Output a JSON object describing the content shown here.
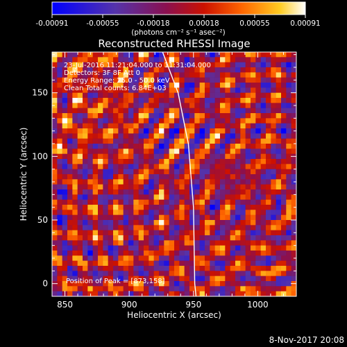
{
  "colorbar": {
    "ticks": [
      "-0.00091",
      "-0.00055",
      "-0.00018",
      "0.00018",
      "0.00055",
      "0.00091"
    ],
    "unit_label": "(photons cm⁻² s⁻¹ asec⁻²)"
  },
  "footer": {
    "timestamp": "8-Nov-2017 20:08"
  },
  "colors": {
    "background": "#000000",
    "text": "#ffffff",
    "limb": "#ffffff"
  },
  "chart_data": {
    "type": "heatmap",
    "title": "Reconstructed RHESSI Image",
    "xlabel": "Heliocentric X (arcsec)",
    "ylabel": "Heliocentric Y (arcsec)",
    "xlim": [
      840,
      1030
    ],
    "ylim": [
      -10,
      182
    ],
    "xticks": [
      850,
      900,
      950,
      1000
    ],
    "yticks": [
      0,
      50,
      100,
      150
    ],
    "annotations": [
      "23-Jul-2016 11:21:04.000 to 11:31:04.000",
      "Detectors: 3F 8F  Att 0",
      "Energy Range: 25.0 - 50.0 keV",
      "Clean    Total counts: 6.84E+03"
    ],
    "peak_text": "Position of Peak = [873,158]",
    "peak_position": [
      873,
      158
    ],
    "value_range": [
      -0.00091,
      0.00091
    ],
    "grid_size": [
      48,
      48
    ],
    "colormap": "blue-purple-red-orange-yellow-white",
    "limb_curve": [
      [
        926,
        182
      ],
      [
        938,
        150
      ],
      [
        946,
        110
      ],
      [
        950,
        60
      ],
      [
        951,
        0
      ],
      [
        952,
        -10
      ]
    ]
  }
}
